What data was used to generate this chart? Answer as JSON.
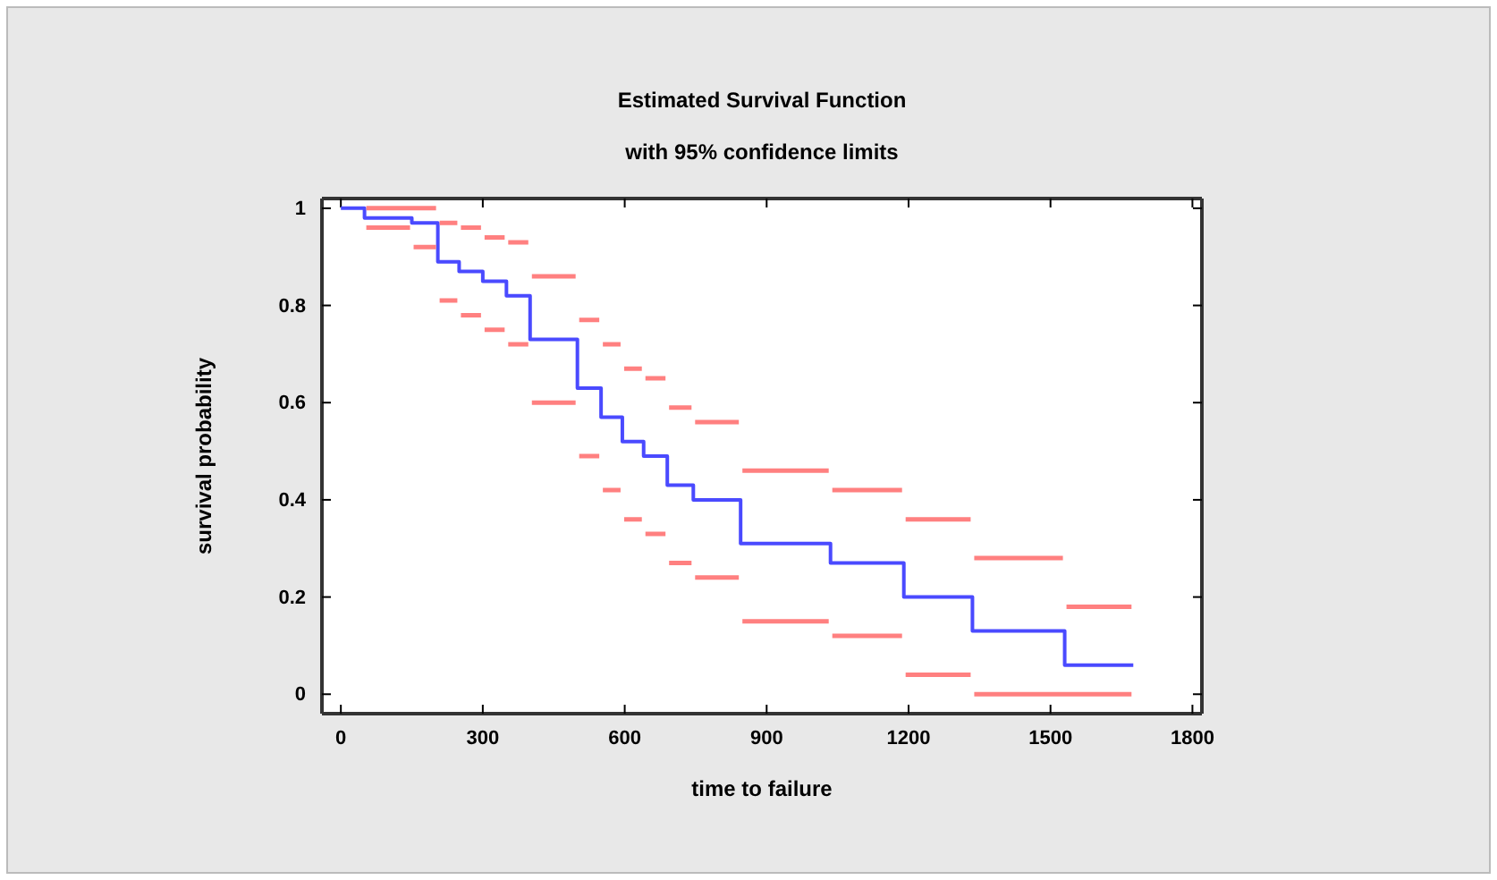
{
  "chart_data": {
    "type": "step",
    "title": "Estimated Survival Function",
    "subtitle": "with 95% confidence limits",
    "xlabel": "time to failure",
    "ylabel": "survival probability",
    "xlim": [
      -40,
      1820
    ],
    "ylim": [
      -0.04,
      1.02
    ],
    "xticks": [
      0,
      300,
      600,
      900,
      1200,
      1500,
      1800
    ],
    "yticks": [
      0,
      0.2,
      0.4,
      0.6,
      0.8,
      1
    ],
    "grid": false,
    "series": [
      {
        "color": "#4a4aff",
        "x": [
          0,
          50,
          150,
          205,
          250,
          300,
          350,
          400,
          500,
          550,
          595,
          640,
          690,
          745,
          845,
          1035,
          1190,
          1335,
          1530,
          1675
        ],
        "values": [
          1,
          0.98,
          0.97,
          0.89,
          0.87,
          0.85,
          0.82,
          0.73,
          0.63,
          0.57,
          0.52,
          0.49,
          0.43,
          0.4,
          0.31,
          0.27,
          0.2,
          0.13,
          0.06,
          0.06
        ]
      },
      {
        "type": "step",
        "color": "#ff8080",
        "x": [
          50,
          205,
          250,
          300,
          350,
          400,
          500,
          550,
          595,
          640,
          690,
          745,
          845,
          1035,
          1190,
          1335,
          1530,
          1675
        ],
        "values": [
          1,
          0.97,
          0.96,
          0.94,
          0.93,
          0.86,
          0.77,
          0.72,
          0.67,
          0.65,
          0.59,
          0.56,
          0.46,
          0.42,
          0.36,
          0.28,
          0.18,
          0.18
        ]
      },
      {
        "type": "step",
        "color": "#ff8080",
        "x": [
          50,
          150,
          205,
          250,
          300,
          350,
          400,
          500,
          550,
          595,
          640,
          690,
          745,
          845,
          1035,
          1190,
          1335,
          1675
        ],
        "values": [
          0.96,
          0.92,
          0.81,
          0.78,
          0.75,
          0.72,
          0.6,
          0.49,
          0.42,
          0.36,
          0.33,
          0.27,
          0.24,
          0.15,
          0.12,
          0.04,
          0,
          0
        ]
      }
    ]
  }
}
